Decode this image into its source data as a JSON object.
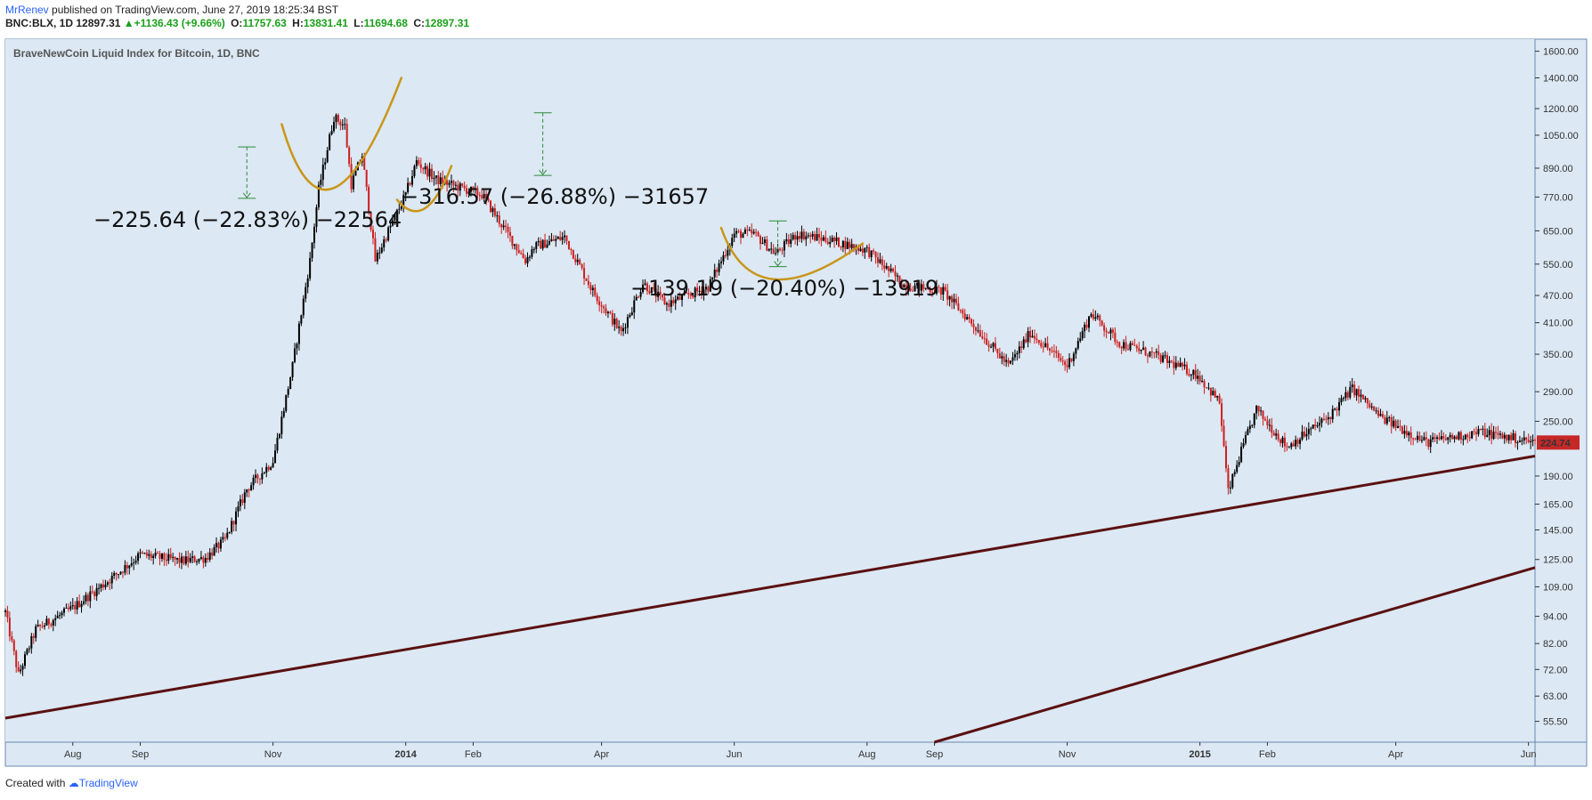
{
  "header": {
    "author": "MrRenev",
    "published": " published on TradingView.com, June 27, 2019 18:25:34 BST",
    "symbol": "BNC:BLX, 1D",
    "last": "12897.31",
    "change": "+1136.43 (+9.66%)",
    "o_label": "O:",
    "o_value": "11757.63",
    "h_label": "H:",
    "h_value": "13831.41",
    "l_label": "L:",
    "l_value": "11694.68",
    "c_label": "C:",
    "c_value": "12897.31"
  },
  "footer": {
    "created_with": "Created with",
    "brand": "TradingView"
  },
  "colors": {
    "background": "#dce8f3",
    "up_candle": "#000000",
    "down_candle": "#cc1f1f",
    "trendline": "#5a1010",
    "annotation_curve": "#c9961a",
    "measure": "#2e8b3a",
    "price_badge": "#c62828"
  },
  "chart_data": {
    "type": "candlestick",
    "title": "BraveNewCoin Liquid Index for Bitcoin, 1D, BNC",
    "y_scale": "log",
    "ylim": [
      50,
      1700
    ],
    "y_ticks": [
      "1600.00",
      "1400.00",
      "1200.00",
      "1050.00",
      "890.00",
      "770.00",
      "650.00",
      "550.00",
      "470.00",
      "410.00",
      "350.00",
      "290.00",
      "250.00",
      "190.00",
      "165.00",
      "145.00",
      "125.00",
      "109.00",
      "94.00",
      "82.00",
      "72.00",
      "63.00",
      "55.50"
    ],
    "x_range": [
      "2013-07-01",
      "2015-06-04"
    ],
    "x_ticks": [
      {
        "date": "2013-08-01",
        "label": "Aug"
      },
      {
        "date": "2013-09-01",
        "label": "Sep"
      },
      {
        "date": "2013-11-01",
        "label": "Nov"
      },
      {
        "date": "2014-01-01",
        "label": "2014"
      },
      {
        "date": "2014-02-01",
        "label": "Feb"
      },
      {
        "date": "2014-04-01",
        "label": "Apr"
      },
      {
        "date": "2014-06-01",
        "label": "Jun"
      },
      {
        "date": "2014-08-01",
        "label": "Aug"
      },
      {
        "date": "2014-09-01",
        "label": "Sep"
      },
      {
        "date": "2014-11-01",
        "label": "Nov"
      },
      {
        "date": "2015-01-01",
        "label": "2015"
      },
      {
        "date": "2015-02-01",
        "label": "Feb"
      },
      {
        "date": "2015-04-01",
        "label": "Apr"
      },
      {
        "date": "2015-06-01",
        "label": "Jun"
      }
    ],
    "last_price": "224.74",
    "price_path": [
      {
        "date": "2013-07-01",
        "close": 96
      },
      {
        "date": "2013-07-07",
        "close": 70
      },
      {
        "date": "2013-07-15",
        "close": 88
      },
      {
        "date": "2013-08-01",
        "close": 98
      },
      {
        "date": "2013-08-20",
        "close": 115
      },
      {
        "date": "2013-09-01",
        "close": 128
      },
      {
        "date": "2013-09-20",
        "close": 124
      },
      {
        "date": "2013-10-01",
        "close": 126
      },
      {
        "date": "2013-10-10",
        "close": 138
      },
      {
        "date": "2013-10-20",
        "close": 178
      },
      {
        "date": "2013-11-01",
        "close": 205
      },
      {
        "date": "2013-11-10",
        "close": 330
      },
      {
        "date": "2013-11-18",
        "close": 560
      },
      {
        "date": "2013-11-22",
        "close": 800
      },
      {
        "date": "2013-11-29",
        "close": 1150
      },
      {
        "date": "2013-12-04",
        "close": 1100
      },
      {
        "date": "2013-12-07",
        "close": 820
      },
      {
        "date": "2013-12-12",
        "close": 950
      },
      {
        "date": "2013-12-18",
        "close": 560
      },
      {
        "date": "2013-12-24",
        "close": 650
      },
      {
        "date": "2014-01-01",
        "close": 780
      },
      {
        "date": "2014-01-06",
        "close": 920
      },
      {
        "date": "2014-01-15",
        "close": 840
      },
      {
        "date": "2014-01-25",
        "close": 810
      },
      {
        "date": "2014-02-05",
        "close": 780
      },
      {
        "date": "2014-02-15",
        "close": 660
      },
      {
        "date": "2014-02-25",
        "close": 560
      },
      {
        "date": "2014-03-01",
        "close": 600
      },
      {
        "date": "2014-03-15",
        "close": 630
      },
      {
        "date": "2014-03-28",
        "close": 480
      },
      {
        "date": "2014-04-10",
        "close": 390
      },
      {
        "date": "2014-04-20",
        "close": 500
      },
      {
        "date": "2014-05-01",
        "close": 450
      },
      {
        "date": "2014-05-20",
        "close": 490
      },
      {
        "date": "2014-06-01",
        "close": 640
      },
      {
        "date": "2014-06-10",
        "close": 640
      },
      {
        "date": "2014-06-20",
        "close": 580
      },
      {
        "date": "2014-06-30",
        "close": 640
      },
      {
        "date": "2014-07-15",
        "close": 620
      },
      {
        "date": "2014-08-01",
        "close": 590
      },
      {
        "date": "2014-08-18",
        "close": 495
      },
      {
        "date": "2014-09-05",
        "close": 480
      },
      {
        "date": "2014-09-20",
        "close": 400
      },
      {
        "date": "2014-10-05",
        "close": 330
      },
      {
        "date": "2014-10-15",
        "close": 390
      },
      {
        "date": "2014-11-01",
        "close": 330
      },
      {
        "date": "2014-11-12",
        "close": 430
      },
      {
        "date": "2014-11-25",
        "close": 370
      },
      {
        "date": "2014-12-10",
        "close": 350
      },
      {
        "date": "2014-12-31",
        "close": 315
      },
      {
        "date": "2015-01-10",
        "close": 275
      },
      {
        "date": "2015-01-14",
        "close": 175
      },
      {
        "date": "2015-01-20",
        "close": 215
      },
      {
        "date": "2015-01-27",
        "close": 265
      },
      {
        "date": "2015-02-10",
        "close": 220
      },
      {
        "date": "2015-03-01",
        "close": 255
      },
      {
        "date": "2015-03-12",
        "close": 295
      },
      {
        "date": "2015-03-25",
        "close": 255
      },
      {
        "date": "2015-04-15",
        "close": 225
      },
      {
        "date": "2015-05-10",
        "close": 237
      },
      {
        "date": "2015-06-04",
        "close": 224.74
      }
    ],
    "trendlines": [
      {
        "from": {
          "date": "2013-07-01",
          "price": 56.4
        },
        "to": {
          "date": "2015-06-04",
          "price": 210
        }
      },
      {
        "from": {
          "date": "2014-09-01",
          "price": 50
        },
        "to": {
          "date": "2015-06-04",
          "price": 120
        }
      }
    ],
    "measurements": [
      {
        "label": "−225.64 (−22.83%) −22564",
        "top": {
          "date": "2013-10-20",
          "price": 990
        },
        "bottom": {
          "date": "2013-10-20",
          "price": 765
        }
      },
      {
        "label": "−316.57 (−26.88%) −31657",
        "top": {
          "date": "2014-03-05",
          "price": 1175
        },
        "bottom": {
          "date": "2014-03-05",
          "price": 858
        }
      },
      {
        "label": "−139.19 (−20.40%) −13919",
        "top": {
          "date": "2014-06-21",
          "price": 683
        },
        "bottom": {
          "date": "2014-06-21",
          "price": 543
        }
      }
    ]
  }
}
